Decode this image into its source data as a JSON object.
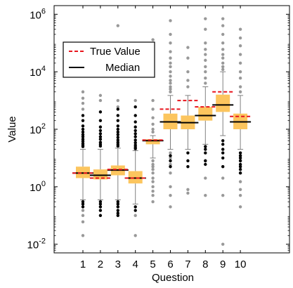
{
  "chart_data": {
    "type": "box",
    "xlabel": "Question",
    "ylabel": "Value",
    "y_scale": "log",
    "ylim": [
      0.005,
      2000000
    ],
    "categories": [
      "1",
      "2",
      "3",
      "4",
      "5",
      "6",
      "7",
      "8",
      "9",
      "10"
    ],
    "y_ticks": [
      {
        "value": 0.01,
        "label_base": "10",
        "label_exp": "-2"
      },
      {
        "value": 1,
        "label_base": "10",
        "label_exp": "0"
      },
      {
        "value": 100,
        "label_base": "10",
        "label_exp": "2"
      },
      {
        "value": 10000,
        "label_base": "10",
        "label_exp": "4"
      },
      {
        "value": 1000000,
        "label_base": "10",
        "label_exp": "6"
      }
    ],
    "legend": {
      "placement": "upper-left",
      "entries": [
        {
          "label": "True Value",
          "style": "dashed",
          "color": "#e8141c"
        },
        {
          "label": "Median",
          "style": "solid",
          "color": "#000000"
        }
      ]
    },
    "colors": {
      "box": "#fcc55e",
      "whisker": "#808080",
      "outlier_gray": "#999999",
      "outlier_black": "#000000",
      "true_value": "#e8141c",
      "median": "#000000"
    },
    "boxes": [
      {
        "category": "1",
        "q1": 2.0,
        "median": 3.0,
        "q3": 5.0,
        "whisker_low": 0.35,
        "whisker_high": 20,
        "true_value": 3.0,
        "outliers_gray": [
          2000,
          1200,
          800,
          500,
          0.15,
          0.1,
          0.06,
          0.02
        ],
        "outliers_black": [
          300,
          200,
          130,
          100,
          80,
          65,
          55,
          45,
          38,
          32,
          28,
          25,
          0.3,
          0.25,
          0.2
        ]
      },
      {
        "category": "2",
        "q1": 1.8,
        "median": 2.5,
        "q3": 4.0,
        "whisker_low": 0.35,
        "whisker_high": 20,
        "true_value": 2.0,
        "outliers_gray": [
          1500,
          1000,
          0.2,
          0.15
        ],
        "outliers_black": [
          400,
          200,
          120,
          90,
          70,
          55,
          45,
          35,
          30,
          26,
          0.3,
          0.25,
          0.2,
          0.15,
          0.1
        ]
      },
      {
        "category": "3",
        "q1": 2.5,
        "median": 3.8,
        "q3": 5.5,
        "whisker_low": 0.35,
        "whisker_high": 22,
        "true_value": 4.0,
        "outliers_gray": [
          400000,
          1000,
          600,
          0.2
        ],
        "outliers_black": [
          500,
          300,
          200,
          130,
          100,
          80,
          65,
          52,
          42,
          35,
          30,
          26,
          0.3,
          0.25,
          0.2,
          0.15,
          0.12,
          0.1
        ]
      },
      {
        "category": "4",
        "q1": 1.3,
        "median": 2.0,
        "q3": 3.5,
        "whisker_low": 0.25,
        "whisker_high": 18,
        "true_value": 2.0,
        "outliers_gray": [
          1000,
          0.1,
          0.02
        ],
        "outliers_black": [
          600,
          300,
          180,
          120,
          90,
          70,
          55,
          42,
          34,
          28,
          24,
          21,
          0.2,
          0.15
        ]
      },
      {
        "category": "5",
        "q1": 30,
        "median": 40,
        "q3": 45,
        "whisker_low": 10,
        "whisker_high": 60,
        "true_value": 42,
        "outliers_gray": [
          130000,
          1000,
          500,
          250,
          150,
          100,
          80,
          8,
          6,
          5,
          4,
          3,
          2,
          1.5,
          1,
          0.7,
          0.5,
          0.3
        ],
        "outliers_black": []
      },
      {
        "category": "6",
        "q1": 100,
        "median": 180,
        "q3": 350,
        "whisker_low": 20,
        "whisker_high": 1500,
        "true_value": 500,
        "outliers_gray": [
          600000,
          200000,
          100000,
          50000,
          30000,
          20000,
          15000,
          10000,
          7000,
          5000,
          4000,
          3000,
          2500,
          2000,
          15,
          10,
          6,
          3,
          1,
          0.5,
          0.2
        ],
        "outliers_black": [
          12,
          8,
          5
        ]
      },
      {
        "category": "7",
        "q1": 100,
        "median": 170,
        "q3": 300,
        "whisker_low": 20,
        "whisker_high": 1500,
        "true_value": 1000,
        "outliers_gray": [
          70000,
          30000,
          10000,
          5000,
          3000,
          0.8,
          0.6
        ],
        "outliers_black": [
          15,
          8,
          5
        ]
      },
      {
        "category": "8",
        "q1": 200,
        "median": 300,
        "q3": 600,
        "whisker_low": 30,
        "whisker_high": 3000,
        "true_value": 600,
        "outliers_gray": [
          700000,
          300000,
          100000,
          60000,
          40000,
          25000,
          15000,
          10000,
          6000,
          4000,
          8,
          2,
          0.5
        ],
        "outliers_black": [
          25,
          20,
          15,
          8,
          6
        ]
      },
      {
        "category": "9",
        "q1": 400,
        "median": 700,
        "q3": 1600,
        "whisker_low": 60,
        "whisker_high": 10000,
        "true_value": 2000,
        "outliers_gray": [
          700000,
          400000,
          200000,
          100000,
          60000,
          40000,
          30000,
          20000,
          15000,
          12000,
          2,
          0.5,
          0.01
        ],
        "outliers_black": [
          40,
          30,
          20,
          15,
          10,
          5
        ]
      },
      {
        "category": "10",
        "q1": 100,
        "median": 180,
        "q3": 350,
        "whisker_low": 20,
        "whisker_high": 1500,
        "true_value": 280,
        "outliers_gray": [
          300000,
          150000,
          80000,
          40000,
          20000,
          10000,
          6000,
          3000,
          2000,
          8,
          3,
          1.5,
          0.8,
          0.5,
          0.2
        ],
        "outliers_black": [
          15,
          12,
          10,
          8,
          6,
          5,
          4,
          3
        ]
      }
    ]
  }
}
